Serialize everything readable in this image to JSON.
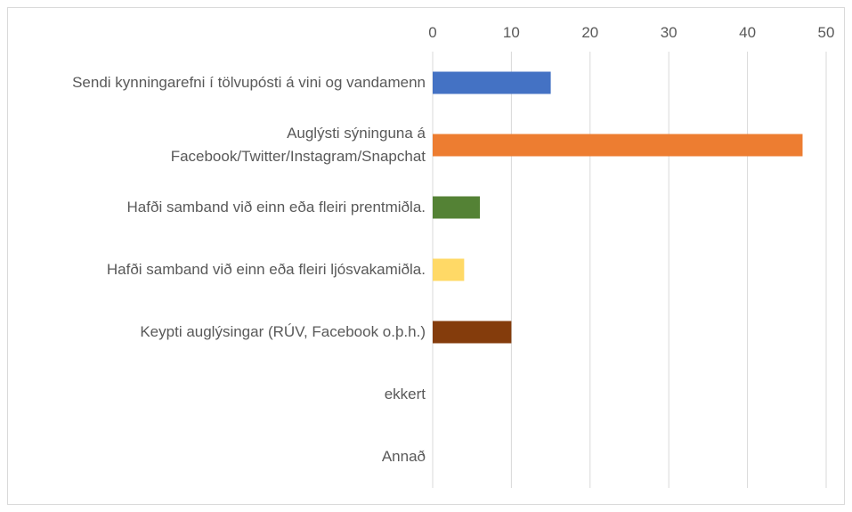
{
  "chart_data": {
    "type": "bar",
    "orientation": "horizontal",
    "categories": [
      "Sendi kynningarefni í tölvupósti á vini og vandamenn",
      "Auglýsti sýninguna á Facebook/Twitter/Instagram/Snapchat",
      "Hafði samband við einn eða fleiri prentmiðla.",
      "Hafði samband við einn eða fleiri ljósvakamiðla.",
      "Keypti auglýsingar (RÚV, Facebook o.þ.h.)",
      "ekkert",
      "Annað"
    ],
    "values": [
      15,
      47,
      6,
      4,
      10,
      0,
      0
    ],
    "colors": [
      "#4472c4",
      "#ed7d31",
      "#548235",
      "#ffd966",
      "#843c0c",
      "#a5a5a5",
      "#5b9bd5"
    ],
    "xlim": [
      0,
      50
    ],
    "xticks": [
      0,
      10,
      20,
      30,
      40,
      50
    ],
    "grid": true
  }
}
